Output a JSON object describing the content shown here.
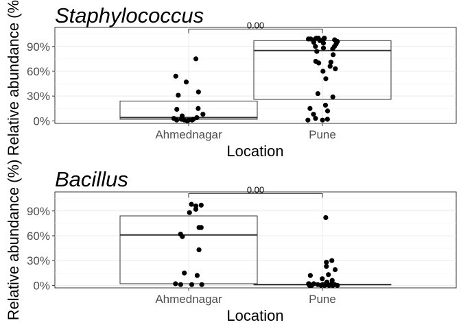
{
  "chart_data": [
    {
      "type": "box",
      "title": "Staphylococcus",
      "xlabel": "Location",
      "ylabel": "Relative abundance (%)",
      "categories": [
        "Ahmednagar",
        "Pune"
      ],
      "y_ticks": [
        0,
        30,
        60,
        90
      ],
      "y_tick_labels": [
        "0%",
        "30%",
        "60%",
        "90%"
      ],
      "ylim": [
        -3,
        113
      ],
      "grid": true,
      "comparison": {
        "groups": [
          "Ahmednagar",
          "Pune"
        ],
        "label": "0.00",
        "y": 111
      },
      "boxes": [
        {
          "category": "Ahmednagar",
          "q1": 2,
          "median": 4,
          "q3": 24
        },
        {
          "category": "Pune",
          "q1": 26,
          "median": 85,
          "q3": 97
        }
      ],
      "points": [
        {
          "category": "Ahmednagar",
          "values": [
            75,
            54,
            47,
            35,
            31,
            15,
            14,
            8,
            6,
            4,
            3,
            2,
            2,
            1,
            1,
            1,
            1,
            0
          ]
        },
        {
          "category": "Pune",
          "values": [
            100,
            100,
            100,
            99,
            99,
            99,
            98,
            98,
            97,
            96,
            95,
            94,
            93,
            90,
            90,
            88,
            87,
            84,
            80,
            72,
            71,
            70,
            66,
            63,
            60,
            51,
            33,
            29,
            19,
            15,
            12,
            8,
            3,
            2,
            1,
            1
          ]
        }
      ]
    },
    {
      "type": "box",
      "title": "Bacillus",
      "xlabel": "Location",
      "ylabel": "Relative abundance (%)",
      "categories": [
        "Ahmednagar",
        "Pune"
      ],
      "y_ticks": [
        0,
        30,
        60,
        90
      ],
      "y_tick_labels": [
        "0%",
        "30%",
        "60%",
        "90%"
      ],
      "ylim": [
        -3,
        113
      ],
      "grid": true,
      "comparison": {
        "groups": [
          "Ahmednagar",
          "Pune"
        ],
        "label": "0.00",
        "y": 111
      },
      "boxes": [
        {
          "category": "Ahmednagar",
          "q1": 2,
          "median": 61,
          "q3": 84
        },
        {
          "category": "Pune",
          "q1": 1,
          "median": 1,
          "q3": 1
        }
      ],
      "points": [
        {
          "category": "Ahmednagar",
          "values": [
            98,
            97,
            96,
            92,
            88,
            70,
            70,
            62,
            59,
            43,
            15,
            12,
            2,
            1,
            1,
            1
          ]
        },
        {
          "category": "Pune",
          "values": [
            82,
            30,
            28,
            23,
            19,
            13,
            12,
            8,
            6,
            4,
            3,
            2,
            2,
            2,
            1,
            1,
            1,
            1,
            1,
            1,
            0,
            0,
            0,
            0,
            0,
            0,
            0,
            0,
            0,
            0
          ]
        }
      ]
    }
  ]
}
